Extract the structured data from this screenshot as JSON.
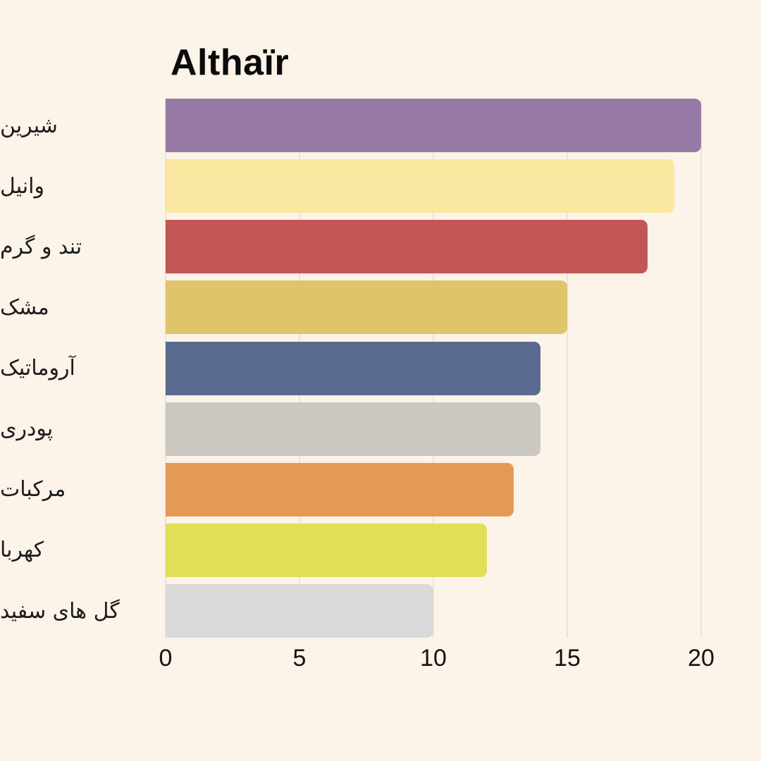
{
  "page": {
    "background": "#FCF3E9",
    "title_color": "#0B0B0B",
    "label_color": "#1C1C1C",
    "tick_color": "#141414",
    "gridline_color": "#D8D3CB"
  },
  "chart_data": {
    "type": "bar",
    "orientation": "horizontal",
    "title": "Althaïr",
    "categories": [
      "شیرین",
      "وانیل",
      "تند و گرم",
      "مشک",
      "آروماتیک",
      "پودری",
      "مرکبات",
      "کهربا",
      "گل های سفید"
    ],
    "values": [
      20,
      19,
      18,
      15,
      14,
      14,
      13,
      12,
      10
    ],
    "bar_colors": [
      "#9679A4",
      "#FBE8A0",
      "#C25655",
      "#DFC46C",
      "#5A6A8E",
      "#CBC8C2",
      "#E49A55",
      "#E1DE57",
      "#D9D9D9"
    ],
    "x_ticks": [
      0,
      5,
      10,
      15,
      20
    ],
    "xlim": [
      0,
      20
    ],
    "xlabel": "",
    "ylabel": "",
    "grid": true,
    "legend": false
  }
}
